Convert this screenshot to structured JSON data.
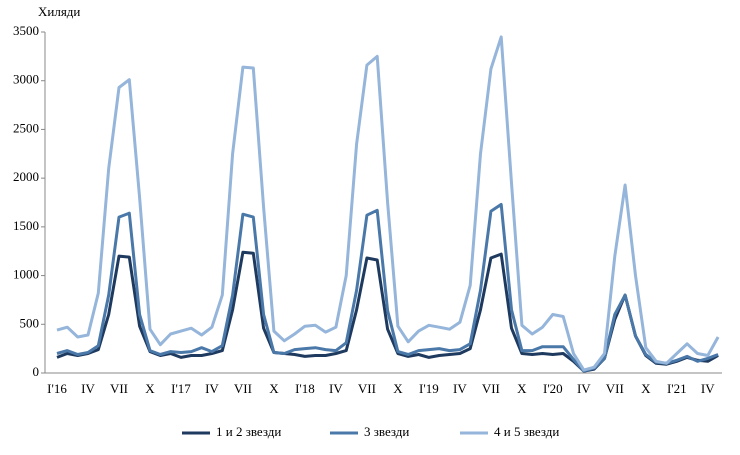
{
  "chart_data": {
    "type": "line",
    "y_label": "Хиляди",
    "categories": [
      "I'16",
      null,
      null,
      "IV",
      null,
      null,
      "VII",
      null,
      null,
      "X",
      null,
      null,
      "I'17",
      null,
      null,
      "IV",
      null,
      null,
      "VII",
      null,
      null,
      "X",
      null,
      null,
      "I'18",
      null,
      null,
      "IV",
      null,
      null,
      "VII",
      null,
      null,
      "X",
      null,
      null,
      "I'19",
      null,
      null,
      "IV",
      null,
      null,
      "VII",
      null,
      null,
      "X",
      null,
      null,
      "I'20",
      null,
      null,
      "IV",
      null,
      null,
      "VII",
      null,
      null,
      "X",
      null,
      null,
      "I'21",
      null,
      null,
      "IV",
      null
    ],
    "series": [
      {
        "name": "1 и 2 звезди",
        "color": "#1f3a5f",
        "values": [
          160,
          200,
          180,
          200,
          240,
          600,
          1200,
          1190,
          480,
          220,
          180,
          200,
          160,
          180,
          180,
          200,
          230,
          650,
          1240,
          1230,
          460,
          210,
          200,
          190,
          170,
          180,
          180,
          200,
          230,
          650,
          1180,
          1160,
          450,
          200,
          170,
          190,
          160,
          180,
          190,
          200,
          250,
          650,
          1180,
          1220,
          460,
          200,
          190,
          200,
          190,
          200,
          120,
          20,
          40,
          150,
          550,
          800,
          380,
          180,
          100,
          90,
          120,
          160,
          130,
          120,
          180
        ]
      },
      {
        "name": "3 звезди",
        "color": "#4a78a8",
        "values": [
          200,
          230,
          190,
          210,
          280,
          800,
          1600,
          1640,
          600,
          230,
          190,
          220,
          210,
          220,
          260,
          220,
          280,
          800,
          1630,
          1600,
          600,
          210,
          200,
          240,
          250,
          260,
          240,
          230,
          310,
          850,
          1620,
          1670,
          640,
          220,
          190,
          230,
          240,
          250,
          230,
          240,
          300,
          850,
          1660,
          1730,
          650,
          230,
          230,
          270,
          270,
          270,
          140,
          20,
          50,
          150,
          600,
          800,
          380,
          190,
          110,
          100,
          130,
          170,
          120,
          150,
          190
        ]
      },
      {
        "name": "4 и 5 звезди",
        "color": "#95b5da",
        "values": [
          440,
          470,
          370,
          390,
          820,
          2100,
          2930,
          3010,
          1800,
          450,
          290,
          400,
          430,
          460,
          390,
          470,
          800,
          2250,
          3140,
          3130,
          1700,
          430,
          330,
          400,
          480,
          490,
          420,
          470,
          1000,
          2350,
          3160,
          3250,
          1750,
          480,
          320,
          430,
          490,
          470,
          450,
          520,
          900,
          2250,
          3120,
          3450,
          1950,
          490,
          400,
          470,
          600,
          580,
          200,
          30,
          60,
          200,
          1200,
          1930,
          1000,
          260,
          120,
          100,
          200,
          300,
          200,
          180,
          370
        ]
      }
    ],
    "ylim": [
      0,
      3500
    ],
    "yticks": [
      0,
      500,
      1000,
      1500,
      2000,
      2500,
      3000,
      3500
    ]
  }
}
